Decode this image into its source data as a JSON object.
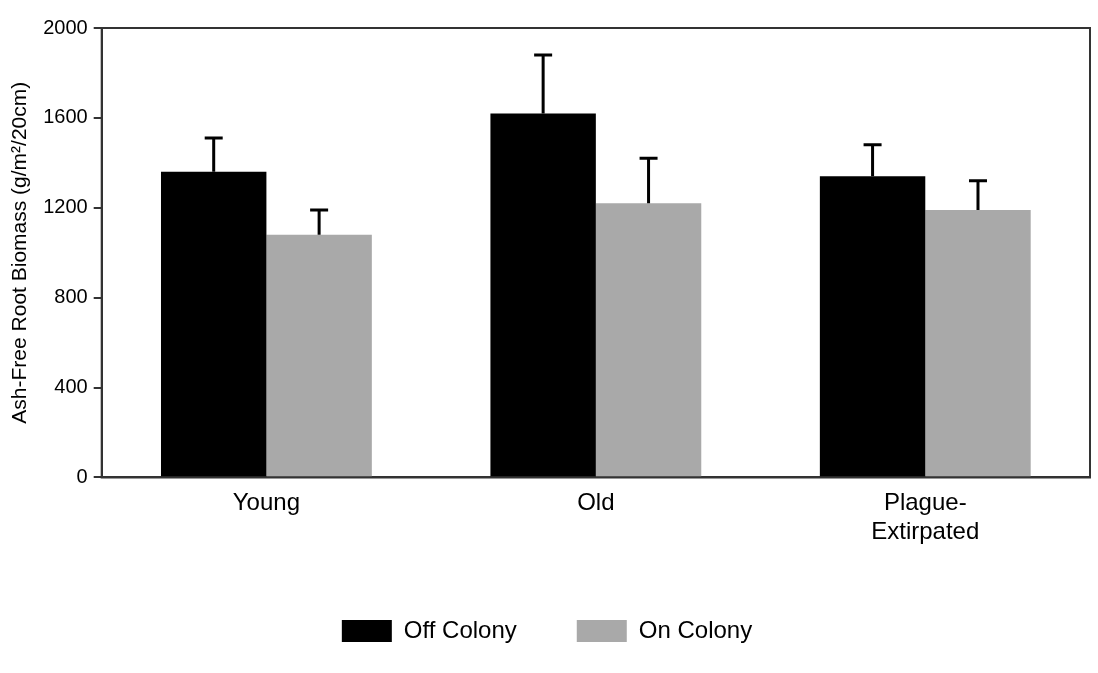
{
  "chart_data": {
    "type": "bar",
    "ylabel": "Ash-Free Root Biomass (g/m²/20cm)",
    "categories": [
      "Young",
      "Old",
      "Plague-Extirpated"
    ],
    "series": [
      {
        "name": "Off Colony",
        "color": "#000000",
        "values": [
          1360,
          1620,
          1340
        ],
        "errors": [
          [
            1360,
            1510
          ],
          [
            1620,
            1880
          ],
          [
            1340,
            1480
          ]
        ]
      },
      {
        "name": "On Colony",
        "color": "#a9a9a9",
        "values": [
          1080,
          1220,
          1190
        ],
        "errors": [
          [
            1080,
            1190
          ],
          [
            1220,
            1420
          ],
          [
            1190,
            1320
          ]
        ]
      }
    ],
    "ylim": [
      0,
      2000
    ],
    "yticks": [
      0,
      400,
      800,
      1200,
      1600,
      2000
    ],
    "grid": false,
    "legend": "bottom"
  }
}
